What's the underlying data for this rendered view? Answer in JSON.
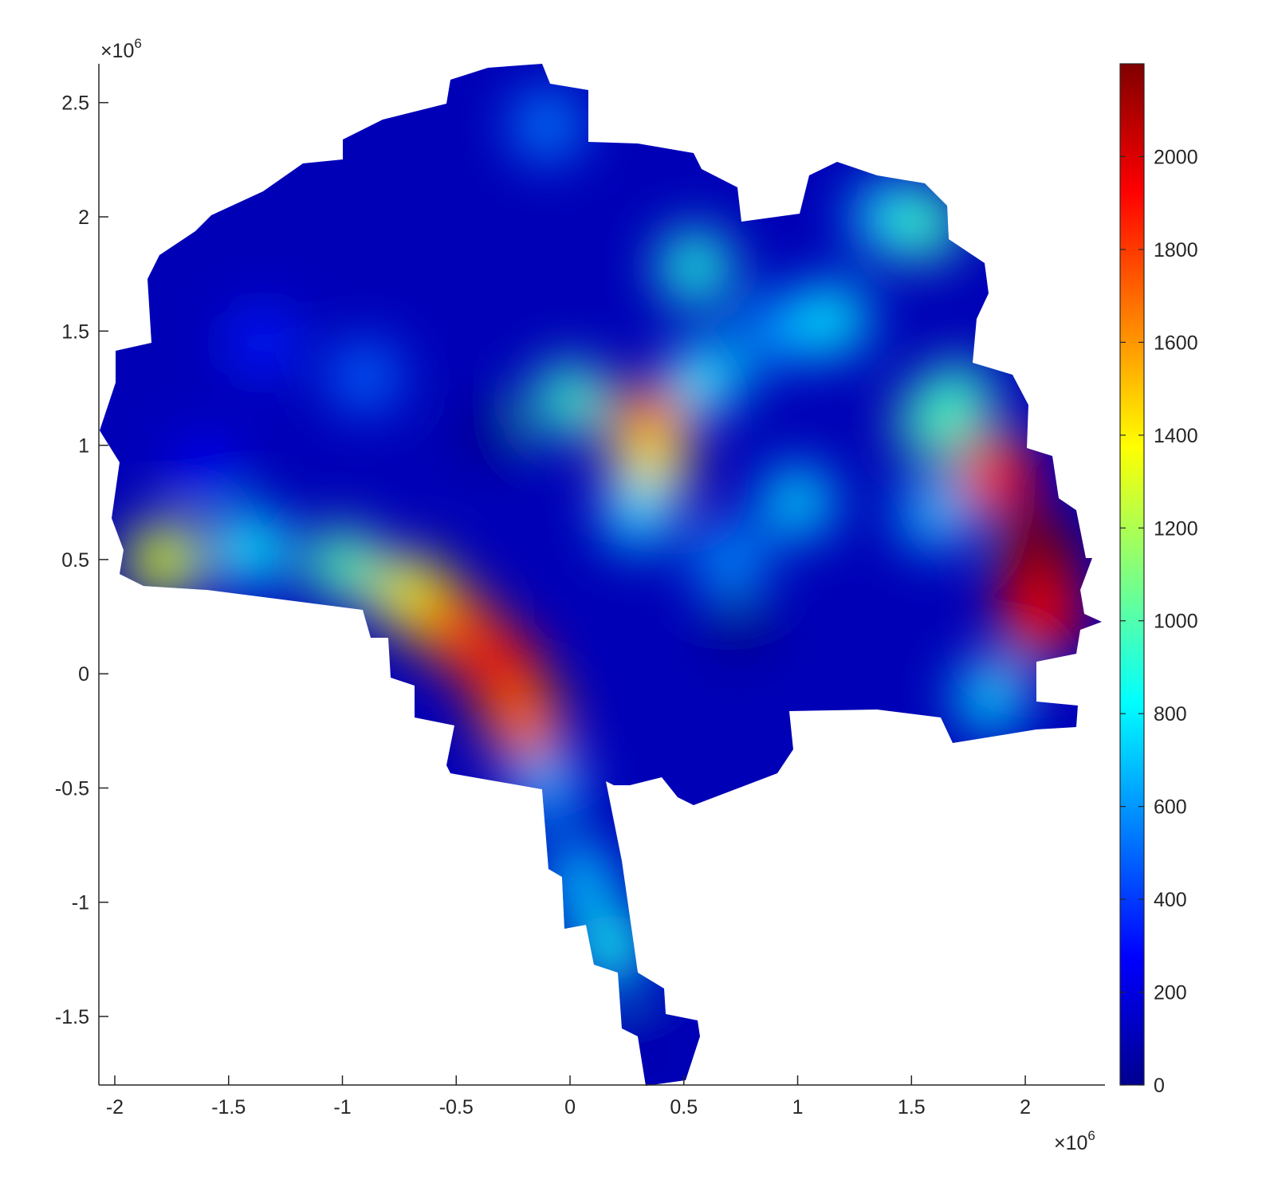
{
  "chart_data": {
    "type": "heatmap",
    "title": "",
    "xlabel": "",
    "ylabel": "",
    "x_multiplier": "×10",
    "x_multiplier_exp": "6",
    "y_multiplier": "×10",
    "y_multiplier_exp": "6",
    "xlim": [
      -2.07,
      2.35
    ],
    "ylim": [
      -1.8,
      2.67
    ],
    "xticks": [
      -2,
      -1.5,
      -1,
      -0.5,
      0,
      0.5,
      1,
      1.5,
      2
    ],
    "xtick_labels": [
      "-2",
      "-1.5",
      "-1",
      "-0.5",
      "0",
      "0.5",
      "1",
      "1.5",
      "2"
    ],
    "yticks": [
      -1.5,
      -1,
      -0.5,
      0,
      0.5,
      1,
      1.5,
      2,
      2.5
    ],
    "ytick_labels": [
      "-1.5",
      "-1",
      "-0.5",
      "0",
      "0.5",
      "1",
      "1.5",
      "2",
      "2.5"
    ],
    "colormap": "jet",
    "colorbar": {
      "limits": [
        0,
        2200
      ],
      "ticks": [
        0,
        200,
        400,
        600,
        800,
        1000,
        1200,
        1400,
        1600,
        1800,
        2000
      ],
      "tick_labels": [
        "0",
        "200",
        "400",
        "600",
        "800",
        "1000",
        "1200",
        "1400",
        "1600",
        "1800",
        "2000"
      ],
      "position": "right"
    },
    "background_value": 120,
    "regions": [
      {
        "x": -1.35,
        "y": 1.45,
        "value": 330
      },
      {
        "x": -1.6,
        "y": 0.9,
        "value": 250
      },
      {
        "x": -0.9,
        "y": 1.3,
        "value": 500
      },
      {
        "x": -1.4,
        "y": 0.55,
        "value": 820
      },
      {
        "x": -1.78,
        "y": 0.5,
        "value": 1300
      },
      {
        "x": -1.0,
        "y": 0.48,
        "value": 1000
      },
      {
        "x": -0.7,
        "y": 0.35,
        "value": 1350
      },
      {
        "x": -0.5,
        "y": 0.2,
        "value": 1750
      },
      {
        "x": -0.3,
        "y": 0.02,
        "value": 1950
      },
      {
        "x": -0.2,
        "y": -0.22,
        "value": 1700
      },
      {
        "x": -0.1,
        "y": -0.5,
        "value": 650
      },
      {
        "x": 0.05,
        "y": -0.9,
        "value": 700
      },
      {
        "x": 0.18,
        "y": -1.2,
        "value": 850
      },
      {
        "x": 0.32,
        "y": -1.65,
        "value": 100
      },
      {
        "x": 0.35,
        "y": 1.1,
        "value": 1750
      },
      {
        "x": 0.35,
        "y": 0.9,
        "value": 1400
      },
      {
        "x": 0.0,
        "y": 1.2,
        "value": 950
      },
      {
        "x": 0.6,
        "y": 1.3,
        "value": 800
      },
      {
        "x": 0.3,
        "y": 0.7,
        "value": 750
      },
      {
        "x": -0.1,
        "y": 2.4,
        "value": 550
      },
      {
        "x": 0.55,
        "y": 1.78,
        "value": 900
      },
      {
        "x": 0.9,
        "y": 1.5,
        "value": 600
      },
      {
        "x": 1.15,
        "y": 1.55,
        "value": 800
      },
      {
        "x": 1.4,
        "y": 2.0,
        "value": 750
      },
      {
        "x": 1.55,
        "y": 1.97,
        "value": 950
      },
      {
        "x": 1.0,
        "y": 0.75,
        "value": 750
      },
      {
        "x": 1.6,
        "y": 1.1,
        "value": 1000
      },
      {
        "x": 1.7,
        "y": 1.2,
        "value": 950
      },
      {
        "x": 0.7,
        "y": 0.5,
        "value": 600
      },
      {
        "x": 1.87,
        "y": 0.87,
        "value": 1900
      },
      {
        "x": 1.6,
        "y": 0.7,
        "value": 700
      },
      {
        "x": 2.05,
        "y": 0.52,
        "value": 2200
      },
      {
        "x": 2.07,
        "y": 0.25,
        "value": 1950
      },
      {
        "x": 1.85,
        "y": -0.1,
        "value": 750
      },
      {
        "x": 0.75,
        "y": 0.2,
        "value": 20
      },
      {
        "x": -0.35,
        "y": 1.05,
        "value": 30
      }
    ]
  }
}
